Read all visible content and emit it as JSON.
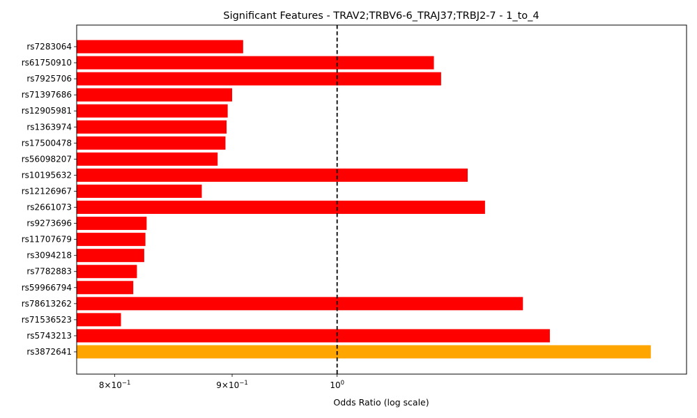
{
  "chart_data": {
    "type": "bar",
    "orientation": "horizontal",
    "title": "Significant Features - TRAV2;TRBV6-6_TRAJ37;TRBJ2-7 - 1_to_4",
    "xlabel": "Odds Ratio (log scale)",
    "ylabel": "",
    "x_scale": "log",
    "xlim": [
      0.77,
      1.42
    ],
    "x_ticks": [
      {
        "value": 0.8,
        "label_base": "8×10",
        "label_exp": "−1"
      },
      {
        "value": 0.9,
        "label_base": "9×10",
        "label_exp": "−1"
      },
      {
        "value": 1.0,
        "label_base": "10",
        "label_exp": "0"
      }
    ],
    "reference_line": {
      "value": 1.0,
      "style": "dashed",
      "color": "#000000"
    },
    "categories": [
      "rs7283064",
      "rs61750910",
      "rs7925706",
      "rs71397686",
      "rs12905981",
      "rs1363974",
      "rs17500478",
      "rs56098207",
      "rs10195632",
      "rs12126967",
      "rs2661073",
      "rs9273696",
      "rs11707679",
      "rs3094218",
      "rs7782883",
      "rs59966794",
      "rs78613262",
      "rs71536523",
      "rs5743213",
      "rs3872641"
    ],
    "values": [
      0.91,
      1.102,
      1.11,
      0.9,
      0.896,
      0.895,
      0.894,
      0.887,
      1.14,
      0.873,
      1.16,
      0.826,
      0.825,
      0.824,
      0.818,
      0.815,
      1.205,
      0.805,
      1.238,
      1.37
    ],
    "colors": [
      "#ff0000",
      "#ff0000",
      "#ff0000",
      "#ff0000",
      "#ff0000",
      "#ff0000",
      "#ff0000",
      "#ff0000",
      "#ff0000",
      "#ff0000",
      "#ff0000",
      "#ff0000",
      "#ff0000",
      "#ff0000",
      "#ff0000",
      "#ff0000",
      "#ff0000",
      "#ff0000",
      "#ff0000",
      "#ffa500"
    ],
    "grid": false
  }
}
